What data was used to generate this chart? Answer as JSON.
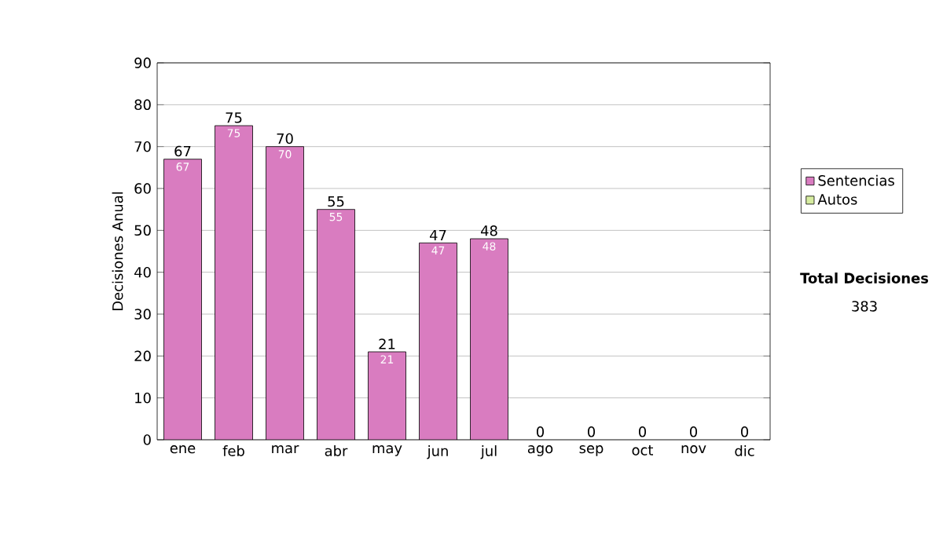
{
  "chart_data": {
    "type": "bar",
    "stacked": true,
    "ylabel": "Decisiones Anual",
    "categories": [
      "ene",
      "feb",
      "mar",
      "abr",
      "may",
      "jun",
      "jul",
      "ago",
      "sep",
      "oct",
      "nov",
      "dic"
    ],
    "series": [
      {
        "name": "Sentencias",
        "color": "#d97cc0",
        "values": [
          67,
          75,
          70,
          55,
          21,
          47,
          48,
          0,
          0,
          0,
          0,
          0
        ],
        "value_labels": [
          "67",
          "75",
          "70",
          "55",
          "21",
          "47",
          "48",
          null,
          null,
          null,
          null,
          null
        ]
      },
      {
        "name": "Autos",
        "color": "#d6eca0",
        "values": [
          0,
          0,
          0,
          0,
          0,
          0,
          0,
          0,
          0,
          0,
          0,
          0
        ]
      }
    ],
    "totals": [
      "67",
      "75",
      "70",
      "55",
      "21",
      "47",
      "48",
      "0",
      "0",
      "0",
      "0",
      "0"
    ],
    "ylim": [
      0,
      90
    ],
    "yticks": [
      0,
      10,
      20,
      30,
      40,
      50,
      60,
      70,
      80,
      90
    ],
    "grid": "y",
    "legend": "right",
    "annotations": [
      "Total Decisiones",
      "383"
    ]
  }
}
